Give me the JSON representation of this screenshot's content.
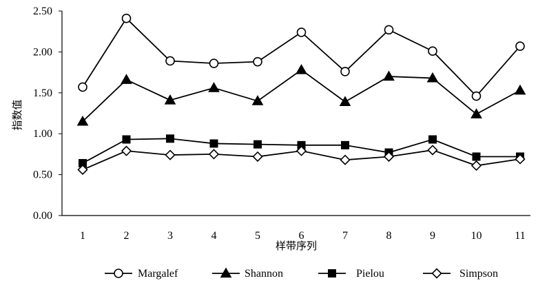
{
  "chart_data": {
    "type": "line",
    "xlabel": "样带序列",
    "ylabel": "指数值",
    "ylim": [
      0,
      2.5
    ],
    "yticks": [
      "0.00",
      "0.50",
      "1.00",
      "1.50",
      "2.00",
      "2.50"
    ],
    "categories": [
      "1",
      "2",
      "3",
      "4",
      "5",
      "6",
      "7",
      "8",
      "9",
      "10",
      "11"
    ],
    "grid": false,
    "legend_position": "bottom",
    "series": [
      {
        "name": "Margalef",
        "marker": "circle-open",
        "values": [
          1.57,
          2.41,
          1.89,
          1.86,
          1.88,
          2.24,
          1.76,
          2.27,
          2.01,
          1.46,
          2.07
        ]
      },
      {
        "name": "Shannon",
        "marker": "triangle-filled",
        "values": [
          1.15,
          1.66,
          1.41,
          1.56,
          1.4,
          1.78,
          1.39,
          1.7,
          1.68,
          1.24,
          1.53
        ]
      },
      {
        "name": "Pielou",
        "marker": "square-filled",
        "values": [
          0.64,
          0.93,
          0.94,
          0.88,
          0.87,
          0.86,
          0.86,
          0.77,
          0.93,
          0.72,
          0.72
        ]
      },
      {
        "name": "Simpson",
        "marker": "diamond-open",
        "values": [
          0.56,
          0.79,
          0.74,
          0.75,
          0.72,
          0.79,
          0.68,
          0.72,
          0.8,
          0.61,
          0.69
        ]
      }
    ]
  }
}
